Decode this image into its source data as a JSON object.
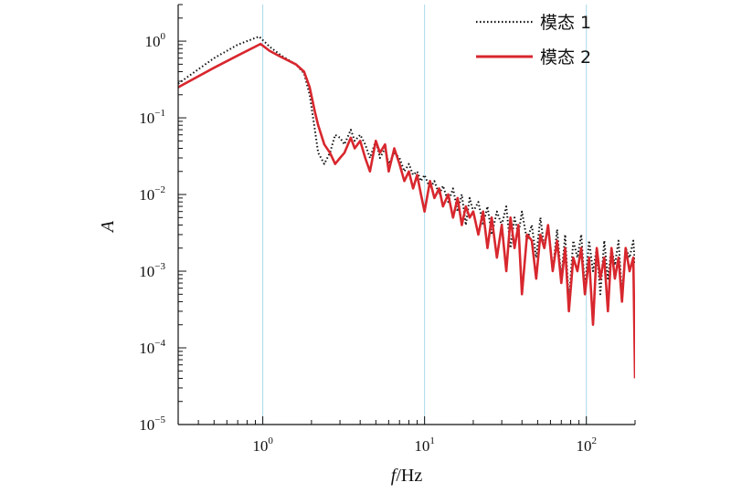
{
  "chart_data": {
    "type": "line",
    "title": "",
    "xlabel_italic": "f",
    "xlabel_rest": "/Hz",
    "ylabel": "A",
    "x_scale": "log",
    "y_scale": "log",
    "xlim": [
      0.3,
      200
    ],
    "ylim": [
      1e-05,
      3
    ],
    "x_ticks": [
      {
        "value": 1,
        "base": "10",
        "exp": "0"
      },
      {
        "value": 10,
        "base": "10",
        "exp": "1"
      },
      {
        "value": 100,
        "base": "10",
        "exp": "2"
      }
    ],
    "y_ticks": [
      {
        "value": 1,
        "base": "10",
        "exp": "0"
      },
      {
        "value": 0.1,
        "base": "10",
        "exp": "−1"
      },
      {
        "value": 0.01,
        "base": "10",
        "exp": "−2"
      },
      {
        "value": 0.001,
        "base": "10",
        "exp": "−3"
      },
      {
        "value": 0.0001,
        "base": "10",
        "exp": "−4"
      },
      {
        "value": 1e-05,
        "base": "10",
        "exp": "−5"
      }
    ],
    "gridlines": {
      "x": [
        1,
        10,
        100
      ],
      "color": "#a8d8e8"
    },
    "legend_position": "top-right",
    "series": [
      {
        "name": "模态 1",
        "color": "#111111",
        "style": "dotted",
        "x": [
          0.3,
          0.5,
          0.7,
          0.95,
          1.1,
          1.3,
          1.6,
          1.8,
          1.95,
          2.1,
          2.2,
          2.4,
          2.6,
          2.8,
          3.0,
          3.2,
          3.5,
          3.7,
          4.0,
          4.3,
          4.6,
          5.0,
          5.3,
          5.7,
          6.0,
          6.5,
          7.0,
          7.5,
          8.0,
          8.5,
          9.0,
          9.5,
          10.0,
          10.8,
          11.5,
          12.3,
          13.0,
          14.0,
          15.0,
          16.0,
          17.0,
          18.0,
          19.0,
          20.0,
          21.5,
          23.0,
          24.5,
          26.0,
          28.0,
          30.0,
          32.0,
          34.0,
          36.0,
          38.0,
          40.0,
          43.0,
          46.0,
          49.0,
          52.0,
          55.0,
          58.0,
          62.0,
          66.0,
          70.0,
          74.0,
          78.0,
          83.0,
          88.0,
          93.0,
          98.0,
          104.0,
          110.0,
          116.0,
          122.0,
          129.0,
          136.0,
          143.0,
          150.0,
          158.0,
          166.0,
          175.0,
          185.0,
          195.0,
          200.0
        ],
        "y": [
          0.28,
          0.6,
          0.9,
          1.15,
          0.85,
          0.65,
          0.5,
          0.38,
          0.2,
          0.07,
          0.035,
          0.025,
          0.035,
          0.06,
          0.055,
          0.045,
          0.07,
          0.05,
          0.06,
          0.045,
          0.03,
          0.05,
          0.03,
          0.04,
          0.025,
          0.035,
          0.03,
          0.02,
          0.025,
          0.018,
          0.02,
          0.015,
          0.018,
          0.012,
          0.015,
          0.01,
          0.013,
          0.008,
          0.012,
          0.006,
          0.01,
          0.004,
          0.009,
          0.006,
          0.008,
          0.004,
          0.007,
          0.003,
          0.006,
          0.004,
          0.007,
          0.002,
          0.005,
          0.003,
          0.006,
          0.0025,
          0.004,
          0.0015,
          0.005,
          0.002,
          0.004,
          0.001,
          0.0035,
          0.0008,
          0.003,
          0.0004,
          0.0025,
          0.0015,
          0.003,
          0.0006,
          0.0025,
          0.001,
          0.002,
          0.0005,
          0.0025,
          0.0008,
          0.002,
          0.0012,
          0.0025,
          0.0005,
          0.002,
          0.0015,
          0.0025,
          0.0012
        ]
      },
      {
        "name": "模态 2",
        "color": "#d8272e",
        "style": "solid",
        "x": [
          0.3,
          0.5,
          0.7,
          0.97,
          1.1,
          1.3,
          1.6,
          1.8,
          1.95,
          2.1,
          2.2,
          2.4,
          2.6,
          2.8,
          3.0,
          3.2,
          3.5,
          3.7,
          4.0,
          4.3,
          4.6,
          5.0,
          5.3,
          5.7,
          6.0,
          6.5,
          7.0,
          7.5,
          8.0,
          8.5,
          9.0,
          9.5,
          10.0,
          10.8,
          11.5,
          12.3,
          13.0,
          14.0,
          15.0,
          16.0,
          17.0,
          18.0,
          19.0,
          20.0,
          21.5,
          23.0,
          24.5,
          26.0,
          28.0,
          30.0,
          32.0,
          34.0,
          36.0,
          38.0,
          40.0,
          43.0,
          46.0,
          49.0,
          52.0,
          55.0,
          58.0,
          62.0,
          66.0,
          70.0,
          74.0,
          78.0,
          83.0,
          88.0,
          93.0,
          98.0,
          104.0,
          110.0,
          116.0,
          122.0,
          129.0,
          136.0,
          143.0,
          150.0,
          158.0,
          166.0,
          175.0,
          185.0,
          195.0,
          200.0
        ],
        "y": [
          0.25,
          0.45,
          0.65,
          0.92,
          0.75,
          0.62,
          0.5,
          0.4,
          0.25,
          0.12,
          0.08,
          0.045,
          0.035,
          0.025,
          0.03,
          0.035,
          0.055,
          0.04,
          0.05,
          0.03,
          0.02,
          0.05,
          0.035,
          0.045,
          0.02,
          0.04,
          0.025,
          0.015,
          0.02,
          0.012,
          0.018,
          0.01,
          0.006,
          0.015,
          0.009,
          0.012,
          0.007,
          0.01,
          0.005,
          0.009,
          0.004,
          0.007,
          0.005,
          0.006,
          0.003,
          0.006,
          0.002,
          0.005,
          0.0015,
          0.004,
          0.001,
          0.005,
          0.002,
          0.004,
          0.0005,
          0.003,
          0.0025,
          0.0008,
          0.003,
          0.002,
          0.004,
          0.001,
          0.0025,
          0.0007,
          0.002,
          0.0003,
          0.0015,
          0.001,
          0.002,
          0.0005,
          0.0015,
          0.0002,
          0.002,
          0.0008,
          0.0015,
          0.0003,
          0.002,
          0.0008,
          0.0015,
          0.0004,
          0.002,
          0.001,
          0.0015,
          4e-05
        ]
      }
    ]
  }
}
